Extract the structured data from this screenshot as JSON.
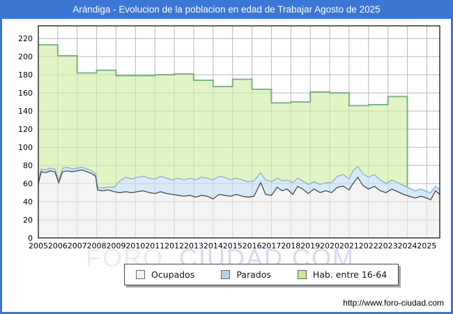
{
  "window": {
    "title": "Arándiga - Evolucion de la poblacion en edad de Trabajar Agosto de 2025",
    "frame_color": "#3b76d4",
    "footer_url": "http://www.foro-ciudad.com"
  },
  "watermark": {
    "part1": "FORO",
    "part2": "CIUDAD.COM"
  },
  "chart_data": {
    "type": "area",
    "title": "Arándiga - Evolucion de la poblacion en edad de Trabajar Agosto de 2025",
    "xlabel": "",
    "ylabel": "",
    "grid": true,
    "x_axis": {
      "start": 2005,
      "data_end": 2025.667,
      "ticks": [
        "2005",
        "2006",
        "2007",
        "2008",
        "2009",
        "2010",
        "2011",
        "2012",
        "2013",
        "2014",
        "2015",
        "2016",
        "2017",
        "2018",
        "2019",
        "2020",
        "2021",
        "2022",
        "2023",
        "2024",
        "2025"
      ]
    },
    "y_axis": {
      "min": 0,
      "max": 234,
      "tick_step": 20,
      "ticks": [
        0,
        20,
        40,
        60,
        80,
        100,
        120,
        140,
        160,
        180,
        200,
        220
      ]
    },
    "legend_position": "bottom-center",
    "legend": [
      {
        "label": "Ocupados",
        "swatch": "#f2f2f2"
      },
      {
        "label": "Parados",
        "swatch": "#b5d2ec"
      },
      {
        "label": "Hab. entre 16-64",
        "swatch": "#c8e79b"
      }
    ],
    "series": [
      {
        "name": "Hab. entre 16-64",
        "style": "annual-step",
        "fill": "#e1f5c4",
        "stroke": "#79b685",
        "years": [
          2005,
          2006,
          2007,
          2008,
          2009,
          2010,
          2011,
          2012,
          2013,
          2014,
          2015,
          2016,
          2017,
          2018,
          2019,
          2020,
          2021,
          2022,
          2023
        ],
        "values": [
          213,
          201,
          182,
          185,
          179,
          179,
          180,
          181,
          174,
          167,
          175,
          164,
          149,
          150,
          161,
          160,
          146,
          147,
          156
        ],
        "ends_at": 2024.0
      },
      {
        "name": "Parados",
        "style": "line-area-stacked-top",
        "note": "values are the top of the stacked band (Ocupados + Parados), monthly estimates",
        "fill": "#d8e9f8",
        "stroke": "#8fb4dc",
        "points": [
          [
            2005.0,
            63
          ],
          [
            2005.15,
            76
          ],
          [
            2005.4,
            75
          ],
          [
            2005.6,
            77
          ],
          [
            2005.85,
            76
          ],
          [
            2006.05,
            64
          ],
          [
            2006.25,
            77
          ],
          [
            2006.5,
            78
          ],
          [
            2006.75,
            76
          ],
          [
            2007.0,
            77
          ],
          [
            2007.25,
            78
          ],
          [
            2007.5,
            76
          ],
          [
            2007.75,
            74
          ],
          [
            2007.95,
            71
          ],
          [
            2008.05,
            56
          ],
          [
            2008.3,
            55
          ],
          [
            2008.6,
            56
          ],
          [
            2008.9,
            56
          ],
          [
            2009.2,
            63
          ],
          [
            2009.5,
            67
          ],
          [
            2009.8,
            65
          ],
          [
            2010.1,
            67
          ],
          [
            2010.4,
            68
          ],
          [
            2010.7,
            66
          ],
          [
            2011.0,
            65
          ],
          [
            2011.3,
            68
          ],
          [
            2011.6,
            66
          ],
          [
            2011.9,
            64
          ],
          [
            2012.2,
            66
          ],
          [
            2012.5,
            64
          ],
          [
            2012.8,
            66
          ],
          [
            2013.1,
            64
          ],
          [
            2013.4,
            67
          ],
          [
            2013.7,
            66
          ],
          [
            2014.0,
            64
          ],
          [
            2014.3,
            68
          ],
          [
            2014.6,
            67
          ],
          [
            2014.9,
            64
          ],
          [
            2015.2,
            66
          ],
          [
            2015.5,
            64
          ],
          [
            2015.8,
            62
          ],
          [
            2016.1,
            63
          ],
          [
            2016.45,
            72
          ],
          [
            2016.7,
            64
          ],
          [
            2017.0,
            62
          ],
          [
            2017.3,
            66
          ],
          [
            2017.55,
            63
          ],
          [
            2017.8,
            64
          ],
          [
            2018.1,
            61
          ],
          [
            2018.35,
            66
          ],
          [
            2018.6,
            63
          ],
          [
            2018.9,
            59
          ],
          [
            2019.2,
            62
          ],
          [
            2019.5,
            59
          ],
          [
            2019.8,
            61
          ],
          [
            2020.1,
            61
          ],
          [
            2020.4,
            68
          ],
          [
            2020.7,
            70
          ],
          [
            2021.0,
            65
          ],
          [
            2021.2,
            74
          ],
          [
            2021.45,
            79
          ],
          [
            2021.7,
            71
          ],
          [
            2022.0,
            67
          ],
          [
            2022.3,
            70
          ],
          [
            2022.6,
            64
          ],
          [
            2022.9,
            60
          ],
          [
            2023.2,
            64
          ],
          [
            2023.5,
            61
          ],
          [
            2023.8,
            58
          ],
          [
            2024.1,
            55
          ],
          [
            2024.4,
            52
          ],
          [
            2024.7,
            54
          ],
          [
            2025.0,
            51
          ],
          [
            2025.2,
            50
          ],
          [
            2025.45,
            57
          ],
          [
            2025.667,
            53
          ]
        ]
      },
      {
        "name": "Ocupados",
        "style": "line-area",
        "fill": "#f4f4f4",
        "stroke": "#4a4a4a",
        "points": [
          [
            2005.0,
            60
          ],
          [
            2005.15,
            73
          ],
          [
            2005.4,
            72
          ],
          [
            2005.6,
            74
          ],
          [
            2005.85,
            73
          ],
          [
            2006.05,
            61
          ],
          [
            2006.25,
            73
          ],
          [
            2006.5,
            74
          ],
          [
            2006.75,
            73
          ],
          [
            2007.0,
            74
          ],
          [
            2007.25,
            75
          ],
          [
            2007.5,
            73
          ],
          [
            2007.75,
            71
          ],
          [
            2007.95,
            68
          ],
          [
            2008.05,
            53
          ],
          [
            2008.3,
            52
          ],
          [
            2008.6,
            53
          ],
          [
            2008.9,
            51
          ],
          [
            2009.2,
            50
          ],
          [
            2009.5,
            51
          ],
          [
            2009.8,
            50
          ],
          [
            2010.1,
            51
          ],
          [
            2010.4,
            52
          ],
          [
            2010.7,
            50
          ],
          [
            2011.0,
            49
          ],
          [
            2011.3,
            51
          ],
          [
            2011.6,
            49
          ],
          [
            2011.9,
            48
          ],
          [
            2012.2,
            47
          ],
          [
            2012.5,
            46
          ],
          [
            2012.8,
            47
          ],
          [
            2013.1,
            45
          ],
          [
            2013.4,
            47
          ],
          [
            2013.7,
            46
          ],
          [
            2014.0,
            43
          ],
          [
            2014.3,
            48
          ],
          [
            2014.6,
            47
          ],
          [
            2014.9,
            46
          ],
          [
            2015.2,
            48
          ],
          [
            2015.5,
            46
          ],
          [
            2015.8,
            45
          ],
          [
            2016.1,
            46
          ],
          [
            2016.45,
            61
          ],
          [
            2016.7,
            48
          ],
          [
            2017.0,
            47
          ],
          [
            2017.3,
            56
          ],
          [
            2017.55,
            52
          ],
          [
            2017.8,
            54
          ],
          [
            2018.1,
            48
          ],
          [
            2018.35,
            57
          ],
          [
            2018.6,
            54
          ],
          [
            2018.9,
            49
          ],
          [
            2019.2,
            54
          ],
          [
            2019.5,
            50
          ],
          [
            2019.8,
            52
          ],
          [
            2020.1,
            50
          ],
          [
            2020.4,
            56
          ],
          [
            2020.7,
            57
          ],
          [
            2021.0,
            53
          ],
          [
            2021.2,
            60
          ],
          [
            2021.45,
            67
          ],
          [
            2021.7,
            58
          ],
          [
            2022.0,
            54
          ],
          [
            2022.3,
            57
          ],
          [
            2022.6,
            52
          ],
          [
            2022.9,
            50
          ],
          [
            2023.2,
            54
          ],
          [
            2023.5,
            51
          ],
          [
            2023.8,
            48
          ],
          [
            2024.1,
            46
          ],
          [
            2024.4,
            44
          ],
          [
            2024.7,
            46
          ],
          [
            2025.0,
            44
          ],
          [
            2025.2,
            42
          ],
          [
            2025.45,
            52
          ],
          [
            2025.667,
            48
          ]
        ]
      }
    ]
  }
}
